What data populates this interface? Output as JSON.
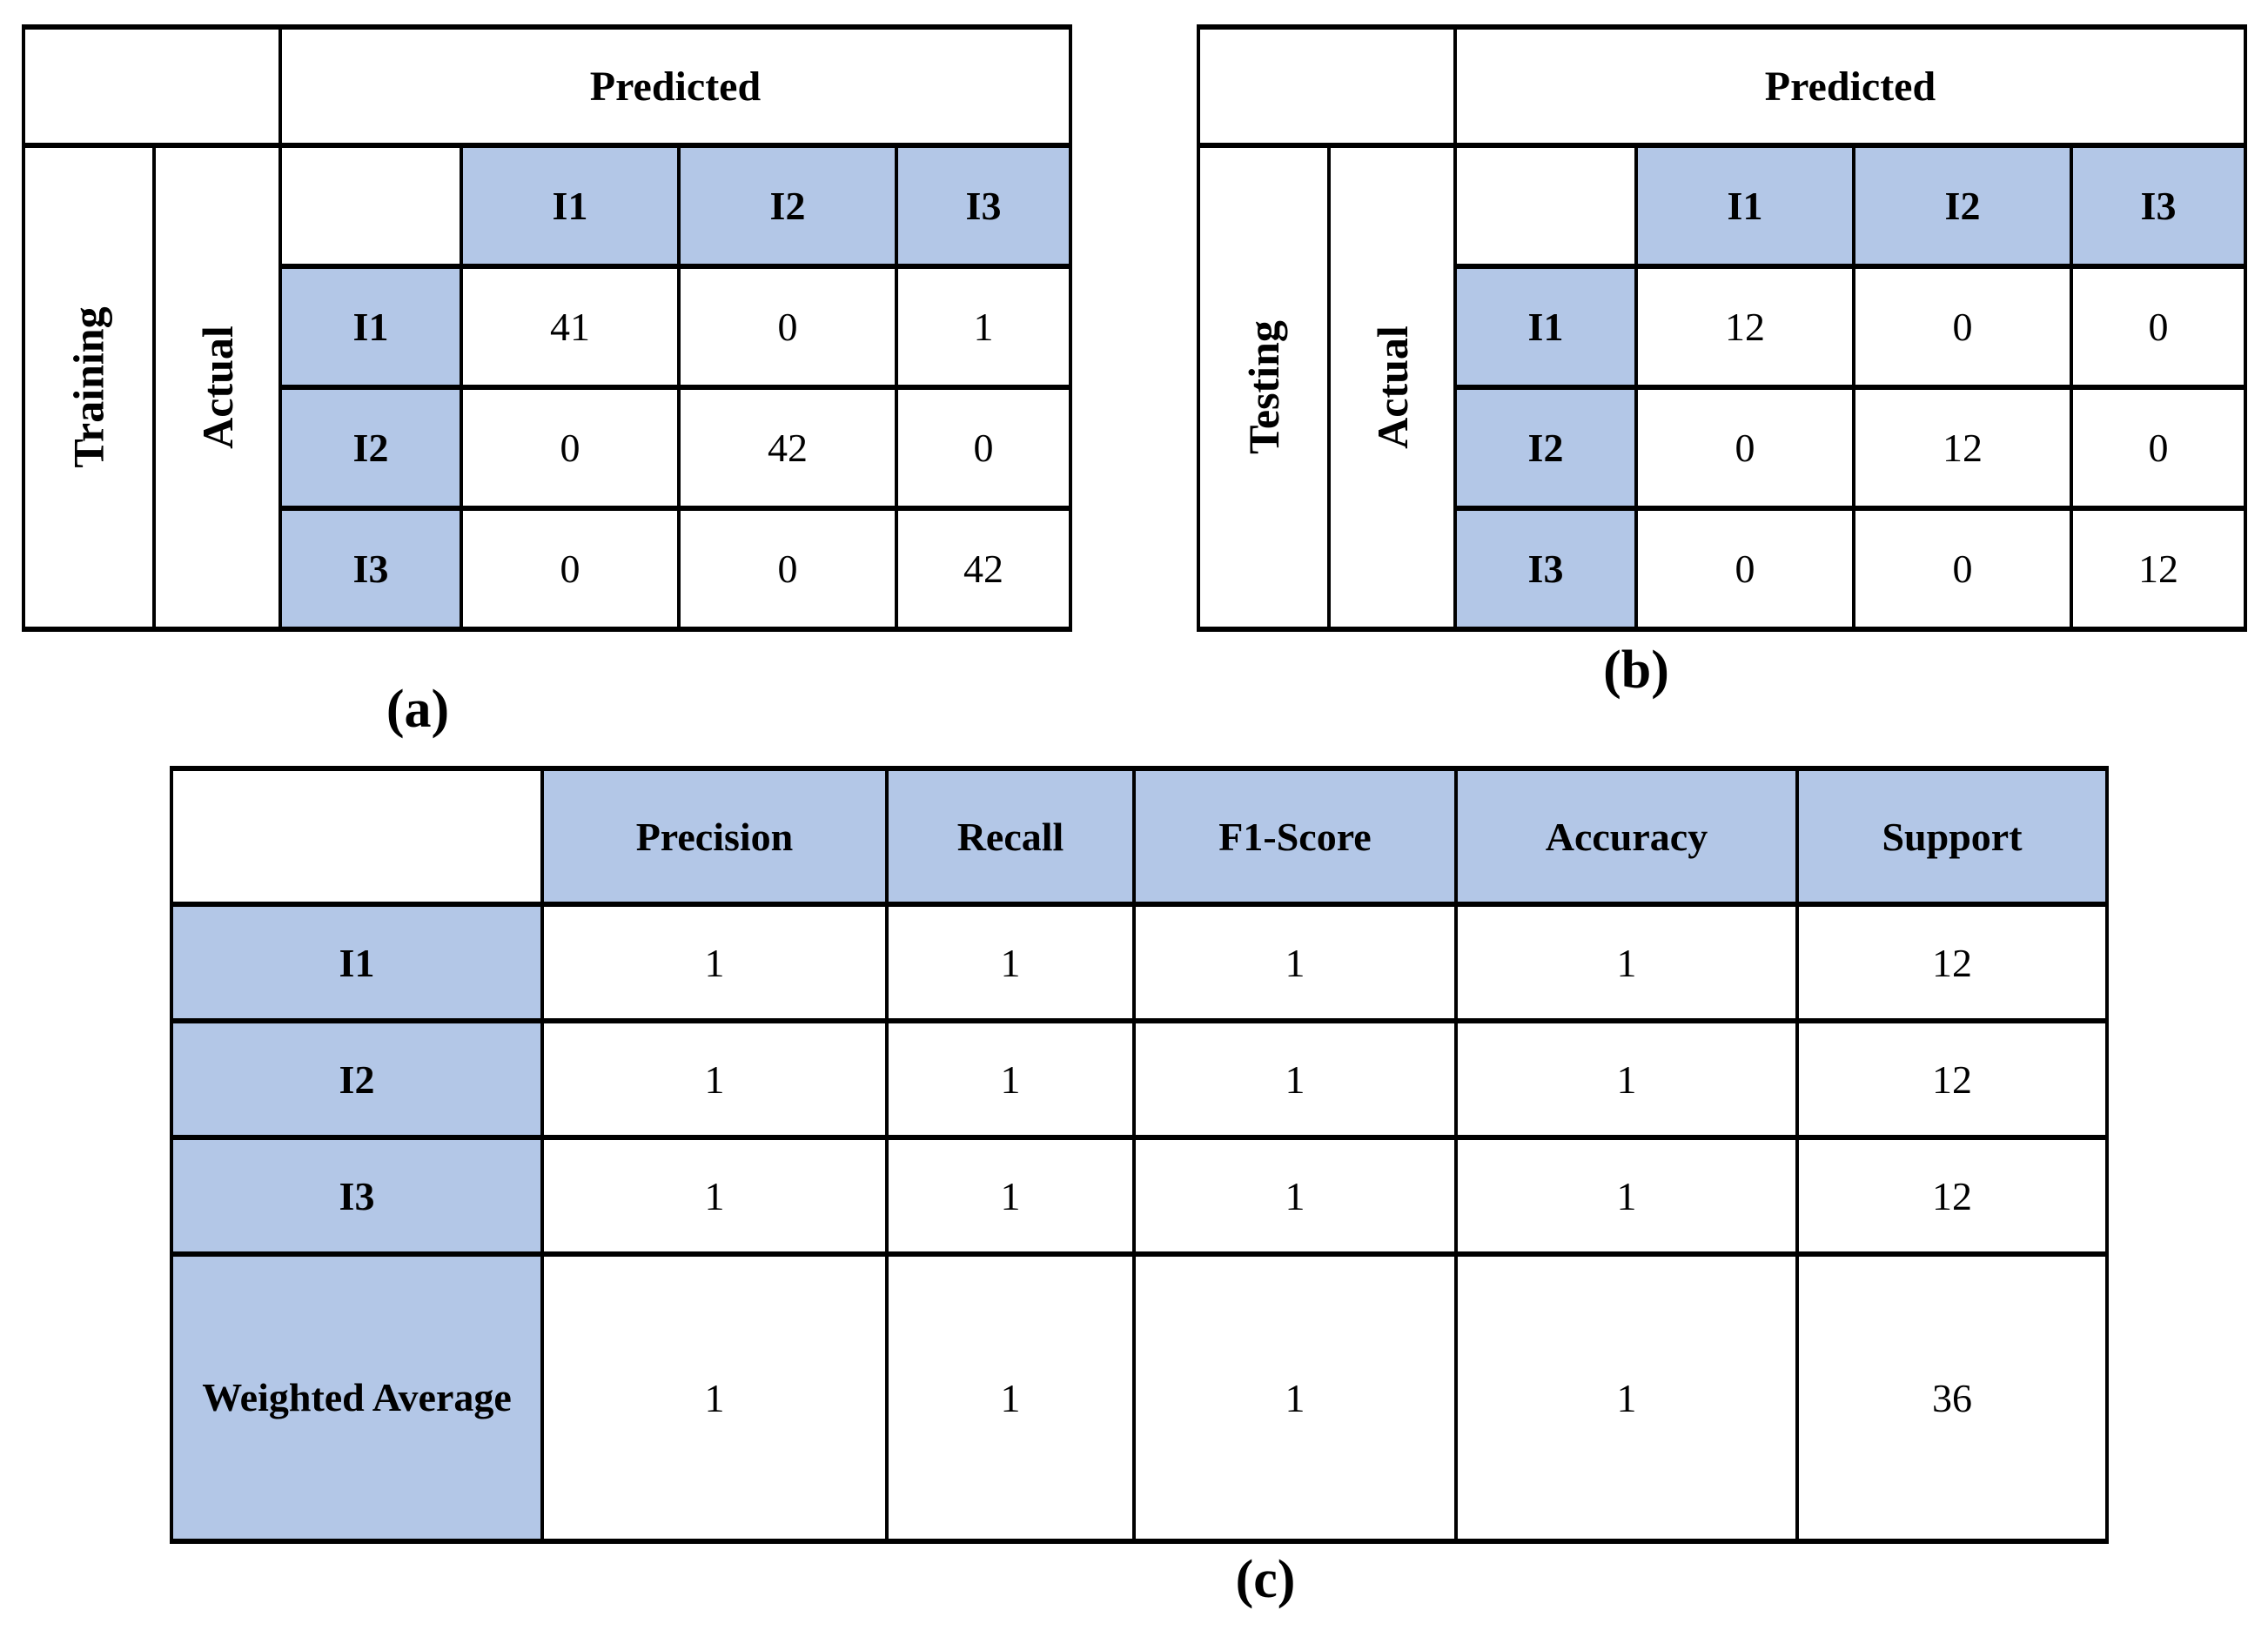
{
  "colors": {
    "header_fill": "#b3c7e7",
    "border": "#000000",
    "background": "#ffffff"
  },
  "figure": {
    "captions": {
      "a": "(a)",
      "b": "(b)",
      "c": "(c)"
    }
  },
  "table_a": {
    "group_label": "Training",
    "row_axis_label": "Actual",
    "col_axis_label": "Predicted",
    "col_headers": [
      "I1",
      "I2",
      "I3"
    ],
    "row_headers": [
      "I1",
      "I2",
      "I3"
    ],
    "matrix": [
      [
        41,
        0,
        1
      ],
      [
        0,
        42,
        0
      ],
      [
        0,
        0,
        42
      ]
    ]
  },
  "table_b": {
    "group_label": "Testing",
    "row_axis_label": "Actual",
    "col_axis_label": "Predicted",
    "col_headers": [
      "I1",
      "I2",
      "I3"
    ],
    "row_headers": [
      "I1",
      "I2",
      "I3"
    ],
    "matrix": [
      [
        12,
        0,
        0
      ],
      [
        0,
        12,
        0
      ],
      [
        0,
        0,
        12
      ]
    ]
  },
  "table_c": {
    "col_headers": [
      "Precision",
      "Recall",
      "F1-Score",
      "Accuracy",
      "Support"
    ],
    "row_headers": [
      "I1",
      "I2",
      "I3",
      "Weighted Average"
    ],
    "values": [
      [
        1,
        1,
        1,
        1,
        12
      ],
      [
        1,
        1,
        1,
        1,
        12
      ],
      [
        1,
        1,
        1,
        1,
        12
      ],
      [
        1,
        1,
        1,
        1,
        36
      ]
    ]
  }
}
